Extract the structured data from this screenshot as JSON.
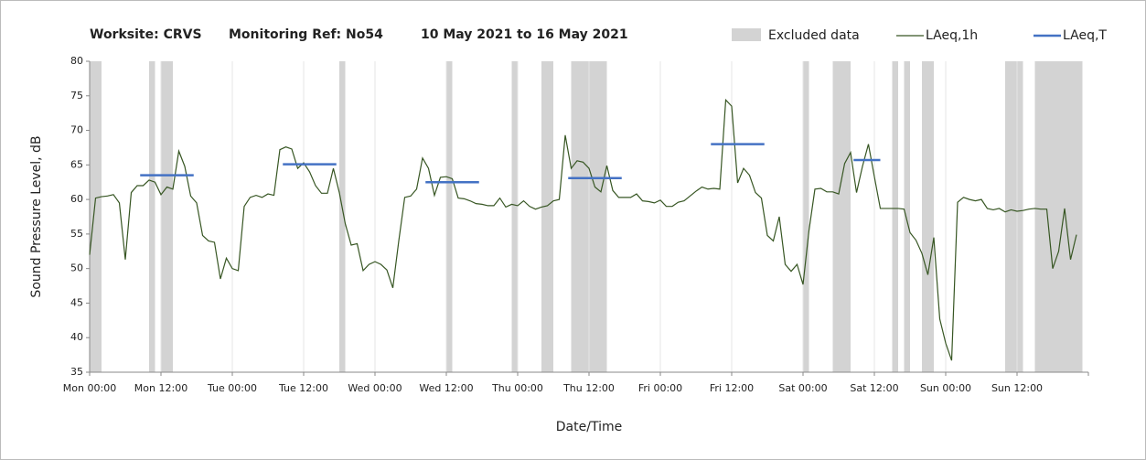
{
  "chart_data": {
    "type": "line",
    "title": [
      "Worksite: CRVS",
      "Monitoring Ref: No54",
      "10 May 2021 to 16 May 2021"
    ],
    "y_label": "Sound Pressure Level, dB",
    "x_label": "Date/Time",
    "xlim": [
      0,
      168
    ],
    "xticks": [
      {
        "value": 0,
        "label": "Mon 00:00"
      },
      {
        "value": 12,
        "label": "Mon 12:00"
      },
      {
        "value": 24,
        "label": "Tue 00:00"
      },
      {
        "value": 36,
        "label": "Tue 12:00"
      },
      {
        "value": 48,
        "label": "Wed 00:00"
      },
      {
        "value": 60,
        "label": "Wed 12:00"
      },
      {
        "value": 72,
        "label": "Thu 00:00"
      },
      {
        "value": 84,
        "label": "Thu 12:00"
      },
      {
        "value": 96,
        "label": "Fri 00:00"
      },
      {
        "value": 108,
        "label": "Fri 12:00"
      },
      {
        "value": 120,
        "label": "Sat 00:00"
      },
      {
        "value": 132,
        "label": "Sat 12:00"
      },
      {
        "value": 144,
        "label": "Sun 00:00"
      },
      {
        "value": 156,
        "label": "Sun 12:00"
      }
    ],
    "ylim": [
      35,
      80
    ],
    "yticks": [
      35,
      40,
      45,
      50,
      55,
      60,
      65,
      70,
      75,
      80
    ],
    "grid": true,
    "excluded_name": "Excluded data",
    "excluded_color": "#d3d3d3",
    "excluded": [
      [
        0,
        2
      ],
      [
        10,
        11
      ],
      [
        12,
        14
      ],
      [
        42,
        43
      ],
      [
        60,
        61
      ],
      [
        71,
        72
      ],
      [
        76,
        78
      ],
      [
        81,
        87
      ],
      [
        120,
        121
      ],
      [
        125,
        128
      ],
      [
        135,
        136
      ],
      [
        137,
        138
      ],
      [
        140,
        142
      ],
      [
        154,
        157
      ],
      [
        159,
        167
      ]
    ],
    "x": [
      0,
      1,
      2,
      3,
      4,
      5,
      6,
      7,
      8,
      9,
      10,
      11,
      12,
      13,
      14,
      15,
      16,
      17,
      18,
      19,
      20,
      21,
      22,
      23,
      24,
      25,
      26,
      27,
      28,
      29,
      30,
      31,
      32,
      33,
      34,
      35,
      36,
      37,
      38,
      39,
      40,
      41,
      42,
      43,
      44,
      45,
      46,
      47,
      48,
      49,
      50,
      51,
      52,
      53,
      54,
      55,
      56,
      57,
      58,
      59,
      60,
      61,
      62,
      63,
      64,
      65,
      66,
      67,
      68,
      69,
      70,
      71,
      72,
      73,
      74,
      75,
      76,
      77,
      78,
      79,
      80,
      81,
      82,
      83,
      84,
      85,
      86,
      87,
      88,
      89,
      90,
      91,
      92,
      93,
      94,
      95,
      96,
      97,
      98,
      99,
      100,
      101,
      102,
      103,
      104,
      105,
      106,
      107,
      108,
      109,
      110,
      111,
      112,
      113,
      114,
      115,
      116,
      117,
      118,
      119,
      120,
      121,
      122,
      123,
      124,
      125,
      126,
      127,
      128,
      129,
      130,
      131,
      132,
      133,
      134,
      135,
      136,
      137,
      138,
      139,
      140,
      141,
      142,
      143,
      144,
      145,
      146,
      147,
      148,
      149,
      150,
      151,
      152,
      153,
      154,
      155,
      156,
      157,
      158,
      159,
      160,
      161,
      162,
      163,
      164,
      165,
      166
    ],
    "series": [
      {
        "name": "LAeq,1h",
        "color": "#375623",
        "values": [
          52,
          60.2,
          60.4,
          60.5,
          60.7,
          59.5,
          51.3,
          61,
          62,
          62,
          62.8,
          62.5,
          60.7,
          61.8,
          61.5,
          67,
          64.8,
          60.5,
          59.5,
          54.8,
          54,
          53.8,
          48.5,
          51.5,
          50,
          49.7,
          59,
          60.3,
          60.6,
          60.3,
          60.8,
          60.6,
          67.2,
          67.6,
          67.3,
          64.5,
          65.3,
          64,
          62,
          60.9,
          60.9,
          64.5,
          61,
          56.5,
          53.4,
          53.6,
          49.7,
          50.6,
          51,
          50.6,
          49.8,
          47.2,
          54,
          60.3,
          60.5,
          61.5,
          66,
          64.5,
          60.6,
          63.2,
          63.3,
          63,
          60.2,
          60.1,
          59.8,
          59.4,
          59.3,
          59.1,
          59.1,
          60.2,
          58.9,
          59.3,
          59.1,
          59.8,
          59,
          58.6,
          58.9,
          59.1,
          59.8,
          60,
          69.3,
          64.5,
          65.6,
          65.4,
          64.5,
          61.8,
          61.1,
          64.9,
          61.3,
          60.3,
          60.3,
          60.3,
          60.8,
          59.8,
          59.7,
          59.5,
          59.9,
          59,
          59,
          59.6,
          59.8,
          60.5,
          61.2,
          61.8,
          61.5,
          61.6,
          61.5,
          74.4,
          73.5,
          62.4,
          64.5,
          63.5,
          61,
          60.2,
          54.8,
          54,
          57.5,
          50.6,
          49.6,
          50.6,
          47.7,
          55.5,
          61.5,
          61.6,
          61.1,
          61.1,
          60.8,
          65.2,
          66.8,
          61,
          64.8,
          68,
          63.3,
          58.7,
          58.7,
          58.7,
          58.7,
          58.6,
          55.2,
          54.1,
          52.2,
          49.1,
          54.5,
          42.7,
          39.2,
          36.7,
          59.6,
          60.3,
          60,
          59.8,
          60,
          58.7,
          58.5,
          58.7,
          58.2,
          58.5,
          58.3,
          58.4,
          58.6,
          58.7,
          58.6,
          58.6,
          50,
          52.5,
          58.7,
          51.3,
          54.9
        ]
      },
      {
        "name": "LAeq,T",
        "color": "#4472c4",
        "segments": [
          {
            "start": 8.5,
            "end": 17.5,
            "value": 63.5
          },
          {
            "start": 32.5,
            "end": 41.5,
            "value": 65.1
          },
          {
            "start": 56.5,
            "end": 65.5,
            "value": 62.5
          },
          {
            "start": 80.5,
            "end": 89.5,
            "value": 63.1
          },
          {
            "start": 104.5,
            "end": 113.5,
            "value": 68
          },
          {
            "start": 128.5,
            "end": 133,
            "value": 65.7
          }
        ]
      }
    ]
  }
}
